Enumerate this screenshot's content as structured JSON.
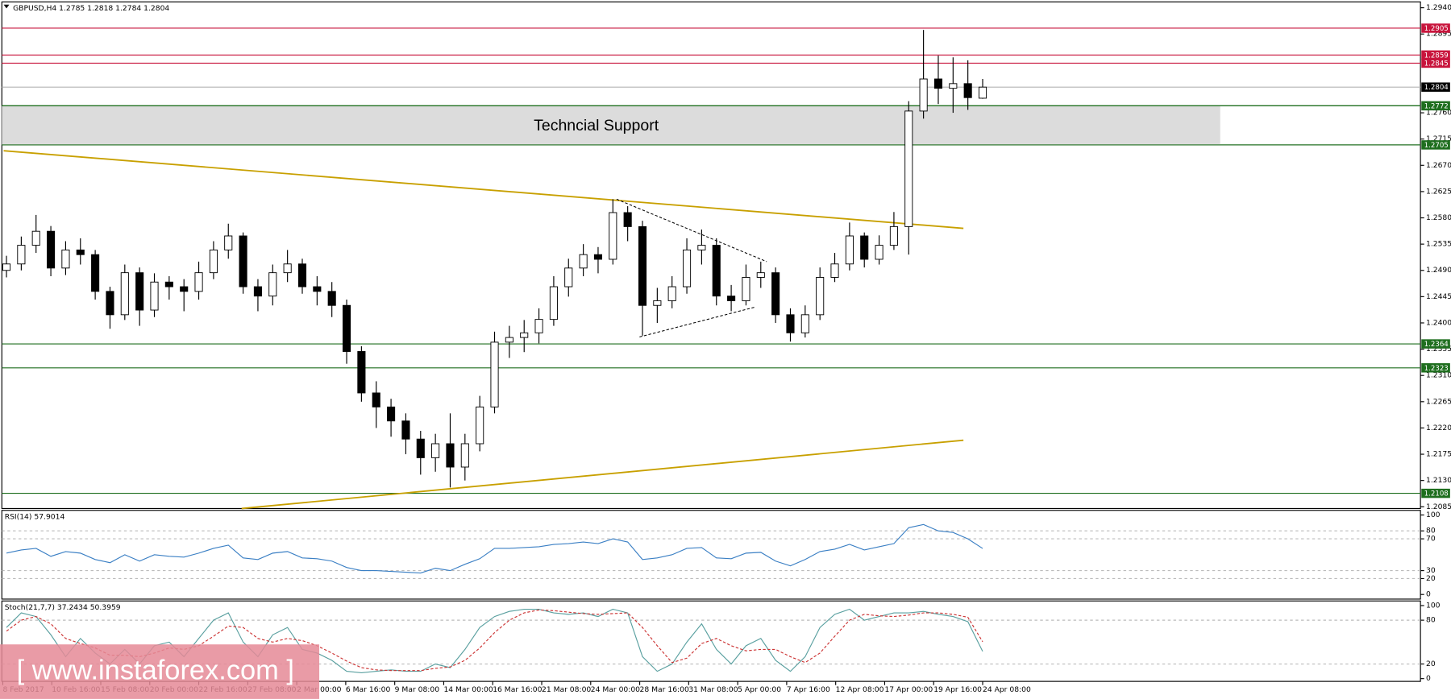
{
  "watermark": "[ www.instaforex.com ]",
  "chart_data": [
    {
      "type": "candlestick",
      "title": "GBPUSD,H4  1.2785 1.2818 1.2784 1.2804",
      "x": [
        0,
        1,
        2,
        3,
        4,
        5,
        6,
        7,
        8,
        9,
        10,
        11,
        12,
        13,
        14,
        15,
        16,
        17,
        18,
        19,
        20,
        21,
        22,
        23,
        24,
        25,
        26,
        27,
        28,
        29,
        30,
        31,
        32,
        33,
        34,
        35,
        36,
        37,
        38,
        39,
        40,
        41,
        42,
        43,
        44,
        45,
        46,
        47,
        48,
        49,
        50,
        51,
        52,
        53,
        54,
        55,
        56,
        57,
        58,
        59,
        60,
        61,
        62,
        63,
        64,
        65,
        66
      ],
      "open": [
        1.249,
        1.2501,
        1.2533,
        1.2557,
        1.2494,
        1.2525,
        1.2517,
        1.2454,
        1.2414,
        1.2486,
        1.2422,
        1.247,
        1.2462,
        1.2454,
        1.2486,
        1.2525,
        1.2549,
        1.2462,
        1.2446,
        1.2486,
        1.2501,
        1.2462,
        1.2454,
        1.243,
        1.2351,
        1.228,
        1.2256,
        1.2232,
        1.2201,
        1.2169,
        1.2193,
        1.2153,
        1.2193,
        1.2256,
        1.2367,
        1.2375,
        1.2383,
        1.2406,
        1.2462,
        1.2494,
        1.2517,
        1.2509,
        1.2589,
        1.2565,
        1.243,
        1.2438,
        1.2462,
        1.2525,
        1.2533,
        1.2446,
        1.2438,
        1.2478,
        1.2486,
        1.2414,
        1.2383,
        1.2414,
        1.2478,
        1.2501,
        1.2549,
        1.2509,
        1.2533,
        1.2565,
        1.2763,
        1.2818,
        1.2802,
        1.281,
        1.2785
      ],
      "high": [
        1.2515,
        1.2548,
        1.2585,
        1.2566,
        1.254,
        1.2545,
        1.2525,
        1.2462,
        1.25,
        1.2495,
        1.2485,
        1.248,
        1.2475,
        1.2505,
        1.254,
        1.257,
        1.2555,
        1.2475,
        1.25,
        1.2525,
        1.251,
        1.248,
        1.247,
        1.244,
        1.236,
        1.23,
        1.227,
        1.2245,
        1.2215,
        1.221,
        1.2245,
        1.221,
        1.2275,
        1.2385,
        1.2395,
        1.2405,
        1.2425,
        1.248,
        1.251,
        1.2535,
        1.253,
        1.2612,
        1.26,
        1.2575,
        1.246,
        1.248,
        1.2545,
        1.256,
        1.2545,
        1.2465,
        1.25,
        1.2505,
        1.2495,
        1.2425,
        1.243,
        1.2495,
        1.252,
        1.2572,
        1.2555,
        1.255,
        1.259,
        1.278,
        1.2902,
        1.2858,
        1.2855,
        1.285,
        1.2818
      ],
      "low": [
        1.2478,
        1.249,
        1.252,
        1.248,
        1.2482,
        1.25,
        1.244,
        1.239,
        1.2405,
        1.2395,
        1.241,
        1.244,
        1.242,
        1.244,
        1.2475,
        1.251,
        1.245,
        1.242,
        1.243,
        1.247,
        1.245,
        1.243,
        1.241,
        1.233,
        1.2265,
        1.222,
        1.2205,
        1.2175,
        1.214,
        1.2145,
        1.2118,
        1.213,
        1.218,
        1.2245,
        1.234,
        1.235,
        1.2365,
        1.2395,
        1.2445,
        1.248,
        1.2485,
        1.25,
        1.254,
        1.2378,
        1.24,
        1.2425,
        1.245,
        1.25,
        1.243,
        1.242,
        1.243,
        1.246,
        1.24,
        1.2368,
        1.2375,
        1.2405,
        1.247,
        1.249,
        1.2495,
        1.25,
        1.2525,
        1.2517,
        1.275,
        1.2775,
        1.276,
        1.2765,
        1.2784
      ],
      "close": [
        1.2501,
        1.2533,
        1.2557,
        1.2494,
        1.2525,
        1.2517,
        1.2454,
        1.2414,
        1.2486,
        1.2422,
        1.247,
        1.2462,
        1.2454,
        1.2486,
        1.2525,
        1.2549,
        1.2462,
        1.2446,
        1.2486,
        1.2501,
        1.2462,
        1.2454,
        1.243,
        1.2351,
        1.228,
        1.2256,
        1.2232,
        1.2201,
        1.2169,
        1.2193,
        1.2153,
        1.2193,
        1.2256,
        1.2367,
        1.2375,
        1.2383,
        1.2406,
        1.2462,
        1.2494,
        1.2517,
        1.2509,
        1.2589,
        1.2565,
        1.243,
        1.2438,
        1.2462,
        1.2525,
        1.2533,
        1.2446,
        1.2438,
        1.2478,
        1.2486,
        1.2414,
        1.2383,
        1.2414,
        1.2478,
        1.2501,
        1.2549,
        1.2509,
        1.2533,
        1.2565,
        1.2763,
        1.2818,
        1.2802,
        1.281,
        1.2786,
        1.2804
      ],
      "up_color": "#ffffff",
      "down_color": "#000000",
      "xlim": [
        -0.3125,
        95.6
      ],
      "ylim": [
        1.2082,
        1.295
      ],
      "yticks": [
        {
          "value": 1.294,
          "label": "1.2940"
        },
        1.2895,
        {
          "value": 1.276,
          "label": "1.2760"
        },
        1.2715,
        {
          "value": 1.267,
          "label": "1.2670"
        },
        1.2625,
        {
          "value": 1.258,
          "label": "1.2580"
        },
        1.2535,
        {
          "value": 1.249,
          "label": "1.2490"
        },
        1.2445,
        {
          "value": 1.24,
          "label": "1.2400"
        },
        1.2355,
        {
          "value": 1.231,
          "label": "1.2310"
        },
        1.2265,
        {
          "value": 1.222,
          "label": "1.2220"
        },
        1.2175,
        {
          "value": 1.213,
          "label": "1.2130"
        },
        1.2085
      ],
      "levels": [
        {
          "value": 1.2905,
          "color": "#c8143c",
          "line_color": "#c8143c"
        },
        {
          "value": 1.2859,
          "color": "#c8143c",
          "line_color": "#c8143c"
        },
        {
          "value": 1.2845,
          "color": "#c8143c",
          "line_color": "#c8143c"
        },
        {
          "value": 1.2804,
          "color": "#000000",
          "line_color": "#b4b4b4"
        },
        {
          "value": 1.2772,
          "color": "#1e6e1e",
          "line_color": "#1e6e1e"
        },
        {
          "value": 1.2705,
          "color": "#1e6e1e",
          "line_color": "#1e6e1e"
        },
        {
          "value": 1.2364,
          "color": "#1e6e1e",
          "line_color": "#1e6e1e"
        },
        {
          "value": 1.2323,
          "color": "#1e6e1e",
          "line_color": "#1e6e1e"
        },
        {
          "value": 1.2108,
          "color": "#1e6e1e",
          "line_color": "#1e6e1e"
        }
      ],
      "zone": {
        "label": "Techncial Support",
        "from": 1.2705,
        "to": 1.2772,
        "x": [
          -0.3125,
          82.06
        ],
        "color": "#dcdcdc"
      },
      "trendlines": [
        {
          "x": [
            -0.19,
            64.7
          ],
          "y": [
            1.2695,
            1.2562
          ],
          "color": "#c8a000",
          "dash": false
        },
        {
          "x": [
            15.9,
            64.7
          ],
          "y": [
            1.2082,
            1.2199
          ],
          "color": "#c8a000",
          "dash": false
        },
        {
          "x": [
            41.25,
            51.4
          ],
          "y": [
            1.2612,
            1.2505
          ],
          "color": "#000000",
          "dash": true
        },
        {
          "x": [
            42.8,
            50.6
          ],
          "y": [
            1.2376,
            1.2427
          ],
          "color": "#000000",
          "dash": true
        }
      ],
      "grid": false
    },
    {
      "type": "line",
      "title": "RSI(14) 57.9014",
      "x": [
        0,
        1,
        2,
        3,
        4,
        5,
        6,
        7,
        8,
        9,
        10,
        11,
        12,
        13,
        14,
        15,
        16,
        17,
        18,
        19,
        20,
        21,
        22,
        23,
        24,
        25,
        26,
        27,
        28,
        29,
        30,
        31,
        32,
        33,
        34,
        35,
        36,
        37,
        38,
        39,
        40,
        41,
        42,
        43,
        44,
        45,
        46,
        47,
        48,
        49,
        50,
        51,
        52,
        53,
        54,
        55,
        56,
        57,
        58,
        59,
        60,
        61,
        62,
        63,
        64,
        65,
        66
      ],
      "series": [
        {
          "color": "#3a7fc4",
          "dash": false,
          "values": [
            52,
            56,
            58,
            48,
            54,
            52,
            44,
            40,
            50,
            42,
            50,
            48,
            47,
            52,
            58,
            62,
            46,
            44,
            52,
            54,
            46,
            45,
            42,
            34,
            30,
            30,
            29,
            28,
            27,
            33,
            30,
            38,
            45,
            58,
            58,
            59,
            60,
            63,
            64,
            66,
            64,
            70,
            66,
            44,
            46,
            50,
            58,
            59,
            46,
            45,
            52,
            53,
            42,
            36,
            44,
            54,
            57,
            63,
            56,
            60,
            64,
            84,
            88,
            80,
            78,
            70,
            57.9014
          ]
        }
      ],
      "xlim": [
        -0.3125,
        95.6
      ],
      "ylim": [
        0,
        100
      ],
      "yticks": [
        0,
        20,
        30,
        70,
        80,
        100
      ],
      "levels": [
        80,
        70,
        30,
        20
      ]
    },
    {
      "type": "line",
      "title": "Stoch(21,7,7) 37.2434 50.3959",
      "x": [
        0,
        1,
        2,
        3,
        4,
        5,
        6,
        7,
        8,
        9,
        10,
        11,
        12,
        13,
        14,
        15,
        16,
        17,
        18,
        19,
        20,
        21,
        22,
        23,
        24,
        25,
        26,
        27,
        28,
        29,
        30,
        31,
        32,
        33,
        34,
        35,
        36,
        37,
        38,
        39,
        40,
        41,
        42,
        43,
        44,
        45,
        46,
        47,
        48,
        49,
        50,
        51,
        52,
        53,
        54,
        55,
        56,
        57,
        58,
        59,
        60,
        61,
        62,
        63,
        64,
        65,
        66
      ],
      "series": [
        {
          "color": "#5aa0a0",
          "dash": false,
          "values": [
            70,
            90,
            85,
            60,
            30,
            55,
            35,
            20,
            40,
            20,
            45,
            50,
            30,
            55,
            80,
            90,
            50,
            30,
            60,
            70,
            40,
            35,
            25,
            10,
            8,
            10,
            12,
            10,
            10,
            20,
            15,
            40,
            70,
            85,
            92,
            95,
            95,
            90,
            88,
            90,
            85,
            95,
            90,
            30,
            10,
            20,
            50,
            75,
            40,
            20,
            45,
            55,
            25,
            10,
            30,
            70,
            88,
            95,
            80,
            85,
            90,
            90,
            92,
            88,
            85,
            78,
            37.2434
          ]
        },
        {
          "color": "#cc3333",
          "dash": true,
          "values": [
            65,
            80,
            85,
            75,
            55,
            48,
            42,
            32,
            32,
            30,
            35,
            42,
            40,
            45,
            58,
            72,
            70,
            55,
            50,
            55,
            52,
            45,
            35,
            24,
            15,
            12,
            11,
            11,
            11,
            14,
            16,
            25,
            42,
            63,
            80,
            90,
            94,
            93,
            91,
            89,
            88,
            89,
            90,
            70,
            45,
            22,
            28,
            48,
            55,
            45,
            38,
            40,
            40,
            30,
            22,
            35,
            58,
            80,
            88,
            86,
            85,
            87,
            90,
            90,
            88,
            84,
            50.3959
          ]
        }
      ],
      "xlim": [
        -0.3125,
        95.6
      ],
      "ylim": [
        0,
        100
      ],
      "yticks": [
        0,
        20,
        80,
        100
      ],
      "levels": [
        80,
        20
      ],
      "xticks": [
        {
          "value": -0.25,
          "label": "8 Feb 2017"
        },
        {
          "value": 3.0625,
          "label": "10 Feb 16:00"
        },
        {
          "value": 6.375,
          "label": "15 Feb 08:00"
        },
        {
          "value": 9.6875,
          "label": "20 Feb 00:00"
        },
        {
          "value": 13,
          "label": "22 Feb 16:00"
        },
        {
          "value": 16.3125,
          "label": "27 Feb 08:00"
        },
        {
          "value": 19.625,
          "label": "2 Mar 00:00"
        },
        {
          "value": 22.9375,
          "label": "6 Mar 16:00"
        },
        {
          "value": 26.25,
          "label": "9 Mar 08:00"
        },
        {
          "value": 29.5625,
          "label": "14 Mar 00:00"
        },
        {
          "value": 32.875,
          "label": "16 Mar 16:00"
        },
        {
          "value": 36.1875,
          "label": "21 Mar 08:00"
        },
        {
          "value": 39.5,
          "label": "24 Mar 00:00"
        },
        {
          "value": 42.8125,
          "label": "28 Mar 16:00"
        },
        {
          "value": 46.125,
          "label": "31 Mar 08:00"
        },
        {
          "value": 49.4375,
          "label": "5 Apr 00:00"
        },
        {
          "value": 52.75,
          "label": "7 Apr 16:00"
        },
        {
          "value": 56.0625,
          "label": "12 Apr 08:00"
        },
        {
          "value": 59.375,
          "label": "17 Apr 00:00"
        },
        {
          "value": 62.6875,
          "label": "19 Apr 16:00"
        },
        {
          "value": 66,
          "label": "24 Apr 08:00"
        }
      ]
    }
  ]
}
